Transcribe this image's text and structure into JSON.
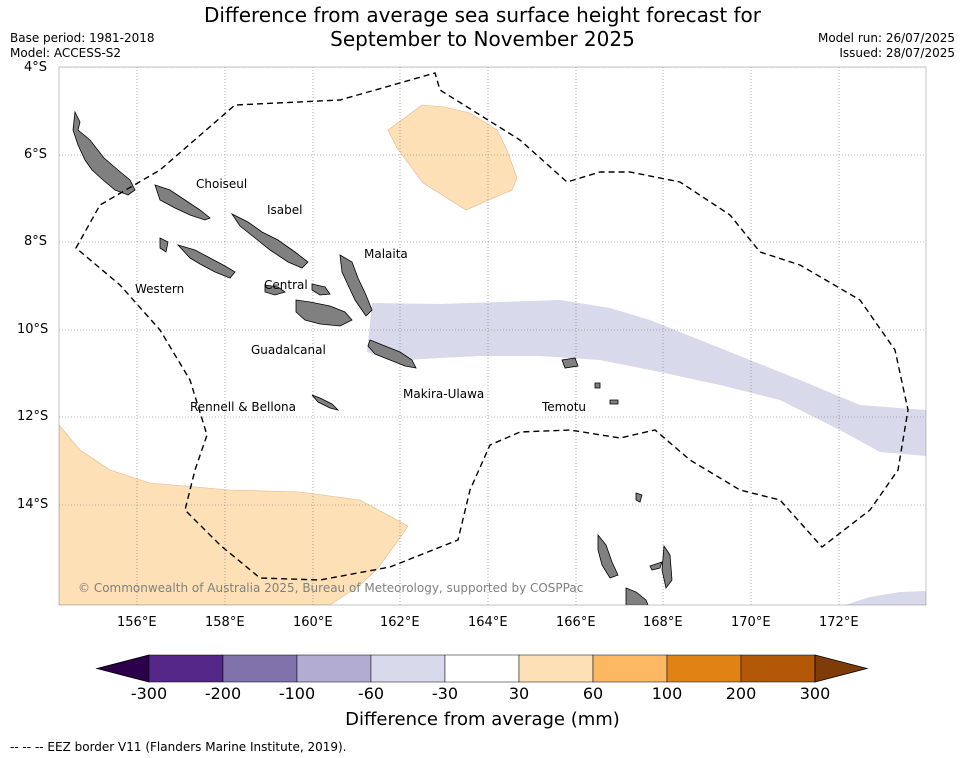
{
  "header": {
    "title_line1": "Difference from average sea surface height forecast for",
    "title_line2": "September to November 2025",
    "base_period": "Base period: 1981-2018",
    "model": "Model: ACCESS-S2",
    "model_run": "Model run: 26/07/2025",
    "issued": "Issued: 28/07/2025"
  },
  "map": {
    "lat_labels": [
      "4°S",
      "6°S",
      "8°S",
      "10°S",
      "12°S",
      "14°S"
    ],
    "lon_labels": [
      "156°E",
      "158°E",
      "160°E",
      "162°E",
      "164°E",
      "166°E",
      "168°E",
      "170°E",
      "172°E"
    ],
    "regions": [
      "Choiseul",
      "Isabel",
      "Malaita",
      "Western",
      "Central",
      "Guadalcanal",
      "Makira-Ulawa",
      "Rennell & Bellona",
      "Temotu"
    ],
    "credit": "© Commonwealth of Australia 2025, Bureau of Meteorology, supported by COSPPac",
    "land_color": "#808080",
    "positive_anomaly_color": "#fde0b6",
    "negative_anomaly_color": "#d8d9ea"
  },
  "colorbar": {
    "ticks": [
      "-300",
      "-200",
      "-100",
      "-60",
      "-30",
      "30",
      "60",
      "100",
      "200",
      "300"
    ],
    "colors": [
      "#2d004b",
      "#542788",
      "#8073ac",
      "#b2abd2",
      "#d8daeb",
      "#ffffff",
      "#fee0b6",
      "#fdb863",
      "#e08214",
      "#b35806",
      "#7f3b08"
    ],
    "label": "Difference from average (mm)"
  },
  "footer": {
    "legend_note": "--  --  -- EEZ border V11 (Flanders Marine Institute, 2019)."
  }
}
